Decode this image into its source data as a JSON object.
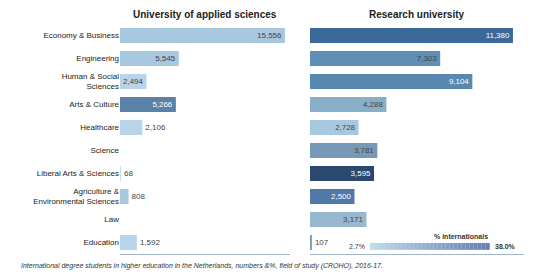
{
  "chart_data": [
    {
      "type": "bar",
      "orientation": "horizontal",
      "title": "University of applied sciences",
      "categories": [
        "Economy & Business",
        "Engineering",
        "Human & Social\nSciences",
        "Arts & Culture",
        "Healthcare",
        "Science",
        "Liberal Arts & Sciences",
        "Agriculture &\nEnvironmental Sciences",
        "Law",
        "Education"
      ],
      "values": [
        15556,
        5545,
        2494,
        5266,
        2106,
        0,
        68,
        808,
        0,
        1592
      ],
      "value_labels": [
        "15,556",
        "5,545",
        "2,494",
        "5,266",
        "2,106",
        null,
        "68",
        "808",
        null,
        "1,592"
      ],
      "colors": [
        "#a8c8e0",
        "#a8c8e0",
        "#b8d4e8",
        "#5a82a8",
        "#b8d4ea",
        "#c8dff0",
        "#c8dff0",
        "#a8c8e0",
        "#c8dff0",
        "#b8d4ea"
      ],
      "xlim": [
        0,
        16000
      ],
      "grid": false,
      "data_labels": true,
      "tick_labels": "y",
      "annotations": [
        "International degree students in higher education in the Netherlands, numbers &%, field of study (CROHO), 2016-17."
      ]
    },
    {
      "type": "bar",
      "orientation": "horizontal",
      "title": "Research university",
      "categories": [
        "Economy & Business",
        "Engineering",
        "Human & Social\nSciences",
        "Arts & Culture",
        "Healthcare",
        "Science",
        "Liberal Arts & Sciences",
        "Agriculture &\nEnvironmental Sciences",
        "Law",
        "Education"
      ],
      "values": [
        11380,
        7303,
        9104,
        4288,
        2728,
        3781,
        3595,
        2500,
        3171,
        107
      ],
      "value_labels": [
        "11,380",
        "7,303",
        "9,104",
        "4,288",
        "2,728",
        "3,781",
        "3,595",
        "2,500",
        "3,171",
        "107"
      ],
      "colors": [
        "#3a6898",
        "#6090b8",
        "#5888b0",
        "#88aec8",
        "#a8c8e0",
        "#7898b8",
        "#2a4870",
        "#5078a8",
        "#98b8d0",
        "#7898b8"
      ],
      "xlim": [
        0,
        12000
      ],
      "grid": false,
      "data_labels": true,
      "tick_labels": false,
      "colorbar": {
        "label": "% internationals",
        "range": [
          2.7,
          38.0
        ],
        "ticks": [
          {
            "value": 2.7,
            "label": "2.7%"
          },
          {
            "value": 38.0,
            "label": "38.0%"
          }
        ]
      }
    }
  ]
}
